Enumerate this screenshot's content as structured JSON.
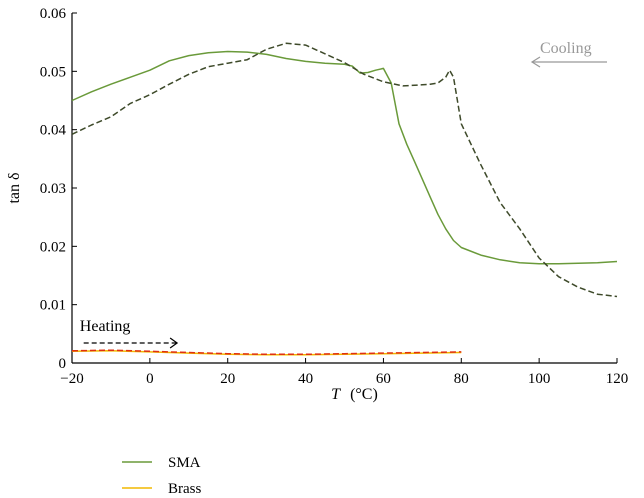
{
  "chart_data": {
    "type": "line",
    "xlabel": "T (°C)",
    "xlabel_var": "T",
    "xlabel_unit": "(°C)",
    "ylabel": "tan δ",
    "xlim": [
      -20,
      120
    ],
    "ylim": [
      0,
      0.06
    ],
    "xticks": [
      -20,
      0,
      20,
      40,
      60,
      80,
      100,
      120
    ],
    "xtick_labels": [
      "−20",
      "0",
      "20",
      "40",
      "60",
      "80",
      "100",
      "120"
    ],
    "yticks": [
      0,
      0.01,
      0.02,
      0.03,
      0.04,
      0.05,
      0.06
    ],
    "ytick_labels": [
      "0",
      "0.01",
      "0.02",
      "0.03",
      "0.04",
      "0.05",
      "0.06"
    ],
    "grid": false,
    "legend_position": "bottom-left",
    "annotations": [
      {
        "text": "Heating",
        "direction": "right",
        "style": "dashed-arrow",
        "color": "#000000"
      },
      {
        "text": "Cooling",
        "direction": "left",
        "style": "solid-arrow",
        "color": "#999999"
      }
    ],
    "series": [
      {
        "name": "SMA",
        "color": "#6a9a3a",
        "dash": "solid",
        "x": [
          -20,
          -15,
          -10,
          -5,
          0,
          5,
          10,
          15,
          20,
          25,
          30,
          35,
          40,
          45,
          50,
          52,
          54,
          56,
          58,
          60,
          62,
          64,
          66,
          68,
          70,
          72,
          74,
          76,
          78,
          80,
          85,
          90,
          95,
          100,
          105,
          110,
          115,
          120
        ],
        "y": [
          0.045,
          0.0465,
          0.0478,
          0.049,
          0.0502,
          0.0518,
          0.0527,
          0.0532,
          0.0534,
          0.0533,
          0.0529,
          0.0522,
          0.0517,
          0.0514,
          0.0512,
          0.0509,
          0.0497,
          0.0498,
          0.0502,
          0.0505,
          0.048,
          0.041,
          0.0375,
          0.0345,
          0.0315,
          0.0285,
          0.0255,
          0.023,
          0.021,
          0.0198,
          0.0185,
          0.0177,
          0.0172,
          0.017,
          0.017,
          0.0171,
          0.0172,
          0.0174
        ]
      },
      {
        "name": "",
        "color": "#3e4a2a",
        "dash": "dashed",
        "x": [
          -20,
          -15,
          -10,
          -5,
          0,
          5,
          10,
          15,
          20,
          25,
          30,
          35,
          40,
          45,
          50,
          55,
          60,
          65,
          70,
          72,
          74,
          76,
          77,
          78,
          80,
          85,
          90,
          95,
          100,
          105,
          110,
          115,
          120
        ],
        "y": [
          0.0392,
          0.0408,
          0.0422,
          0.0445,
          0.046,
          0.0478,
          0.0495,
          0.0508,
          0.0514,
          0.052,
          0.0538,
          0.0548,
          0.0545,
          0.053,
          0.0515,
          0.0495,
          0.0482,
          0.0475,
          0.0477,
          0.0478,
          0.048,
          0.049,
          0.0502,
          0.049,
          0.041,
          0.034,
          0.0275,
          0.023,
          0.018,
          0.0148,
          0.013,
          0.0118,
          0.0114
        ]
      },
      {
        "name": "Brass",
        "color": "#f2b800",
        "dash": "solid",
        "x": [
          -20,
          -10,
          0,
          10,
          20,
          30,
          40,
          50,
          60,
          70,
          80
        ],
        "y": [
          0.002,
          0.0021,
          0.0019,
          0.0017,
          0.0015,
          0.0014,
          0.0014,
          0.0015,
          0.0016,
          0.0017,
          0.0018
        ]
      },
      {
        "name": "",
        "color": "#e03010",
        "dash": "dashed",
        "x": [
          -20,
          -10,
          0,
          10,
          20,
          30,
          40,
          50,
          60,
          70,
          80
        ],
        "y": [
          0.0021,
          0.0022,
          0.002,
          0.0018,
          0.0016,
          0.0015,
          0.0015,
          0.0016,
          0.0017,
          0.0018,
          0.0019
        ]
      }
    ]
  }
}
